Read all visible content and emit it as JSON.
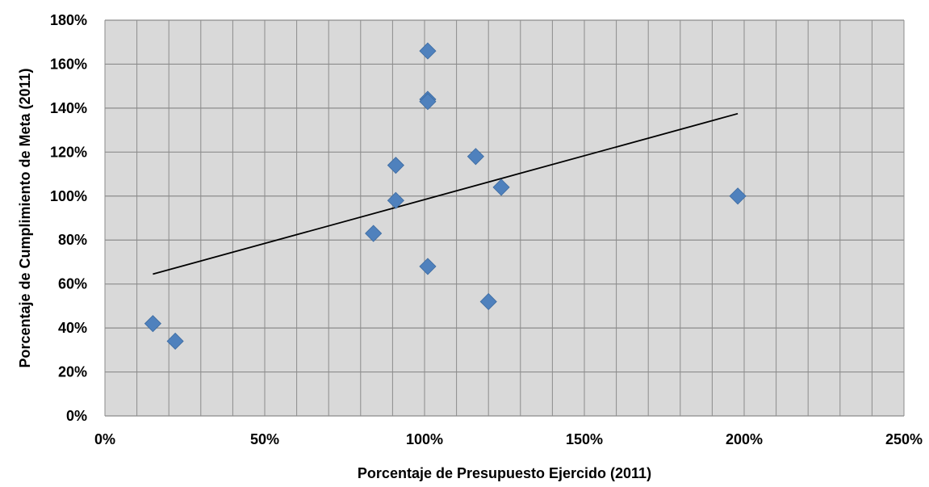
{
  "chart_data": {
    "type": "scatter",
    "xlabel": "Porcentaje de Presupuesto Ejercido (2011)",
    "ylabel": "Porcentaje de Cumplimiento de Meta (2011)",
    "xlim": [
      0,
      250
    ],
    "ylim": [
      0,
      180
    ],
    "x_ticks": [
      0,
      50,
      100,
      150,
      200,
      250
    ],
    "x_tick_labels": [
      "0%",
      "50%",
      "100%",
      "150%",
      "200%",
      "250%"
    ],
    "y_ticks": [
      0,
      20,
      40,
      60,
      80,
      100,
      120,
      140,
      160,
      180
    ],
    "y_tick_labels": [
      "0%",
      "20%",
      "40%",
      "60%",
      "80%",
      "100%",
      "120%",
      "140%",
      "160%",
      "180%"
    ],
    "grid": true,
    "minor_x_grid_step": 10,
    "colors": {
      "plot_background": "#d9d9d9",
      "grid": "#8c8c8c",
      "marker": "#4f81bd",
      "trendline": "#000000"
    },
    "series": [
      {
        "marker": "diamond",
        "points": [
          {
            "x": 15,
            "y": 42
          },
          {
            "x": 22,
            "y": 34
          },
          {
            "x": 84,
            "y": 83
          },
          {
            "x": 91,
            "y": 114
          },
          {
            "x": 91,
            "y": 98
          },
          {
            "x": 101,
            "y": 166
          },
          {
            "x": 101,
            "y": 144
          },
          {
            "x": 101,
            "y": 143
          },
          {
            "x": 101,
            "y": 68
          },
          {
            "x": 116,
            "y": 118
          },
          {
            "x": 120,
            "y": 52
          },
          {
            "x": 124,
            "y": 104
          },
          {
            "x": 198,
            "y": 100
          }
        ]
      }
    ],
    "trendline": {
      "x": [
        15,
        198
      ],
      "y": [
        64.5,
        137.5
      ]
    }
  }
}
